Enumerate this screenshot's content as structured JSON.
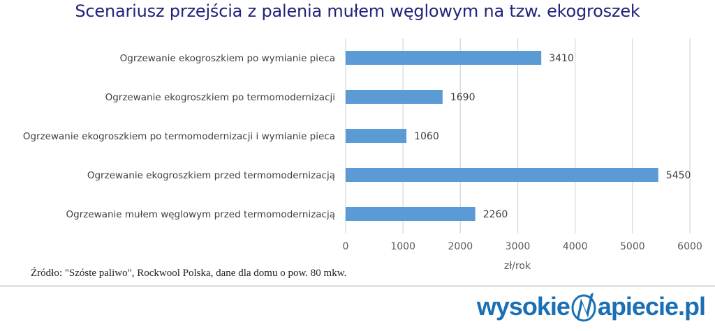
{
  "chart_data": {
    "type": "bar",
    "orientation": "horizontal",
    "title": "Scenariusz przejścia z palenia mułem węglowym na tzw. ekogroszek",
    "categories": [
      "Ogrzewanie ekogroszkiem po wymianie pieca",
      "Ogrzewanie ekogroszkiem po termomodernizacji",
      "Ogrzewanie ekogroszkiem po termomodernizacji i wymianie pieca",
      "Ogrzewanie ekogroszkiem przed termomodernizacją",
      "Ogrzewanie mułem węglowym przed termomodernizacją"
    ],
    "values": [
      3410,
      1690,
      1060,
      5450,
      2260
    ],
    "data_labels": [
      "3410",
      "1690",
      "1060",
      "5450",
      "2260"
    ],
    "xlabel": "zł/rok",
    "ylabel": "",
    "xlim": [
      0,
      6000
    ],
    "xticks": [
      "0",
      "1000",
      "2000",
      "3000",
      "4000",
      "5000",
      "6000"
    ],
    "grid": true,
    "bar_color": "#5b9bd5"
  },
  "source": "Źródło: \"Szóste paliwo\", Rockwool Polska, dane dla domu o pow. 80 mkw.",
  "logo": {
    "left": "wysokie",
    "right": "apiecie.pl",
    "color": "#1a6fb5"
  }
}
